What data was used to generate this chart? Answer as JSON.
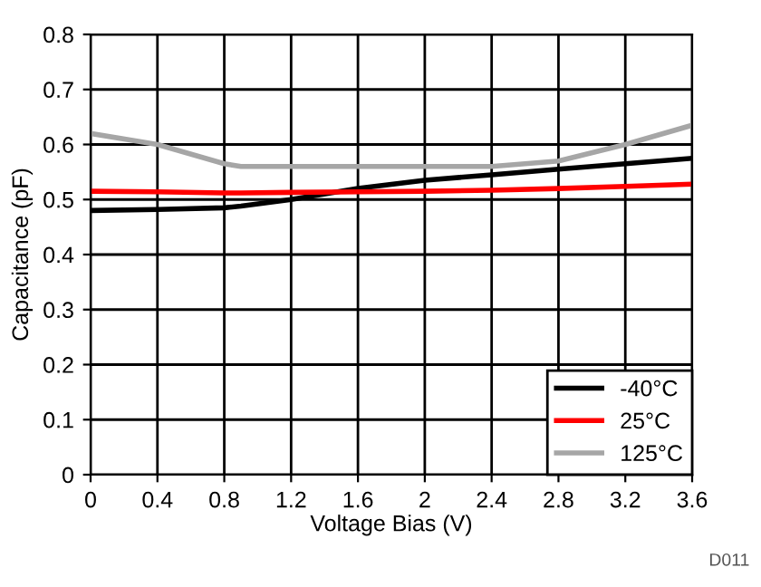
{
  "chart_data": {
    "type": "line",
    "xlabel": "Voltage Bias (V)",
    "ylabel": "Capacitance (pF)",
    "x": [
      0,
      0.4,
      0.8,
      0.9,
      1.2,
      1.6,
      2.0,
      2.4,
      2.8,
      3.2,
      3.6
    ],
    "series": [
      {
        "name": "-40°C",
        "color": "#000000",
        "values": [
          0.48,
          0.482,
          0.485,
          0.488,
          0.5,
          0.52,
          0.535,
          0.545,
          0.555,
          0.565,
          0.575
        ]
      },
      {
        "name": "25°C",
        "color": "#ff0000",
        "values": [
          0.515,
          0.514,
          0.512,
          0.512,
          0.513,
          0.514,
          0.515,
          0.517,
          0.52,
          0.524,
          0.528
        ]
      },
      {
        "name": "125°C",
        "color": "#a6a6a6",
        "values": [
          0.62,
          0.6,
          0.565,
          0.56,
          0.56,
          0.56,
          0.56,
          0.56,
          0.57,
          0.6,
          0.635
        ]
      }
    ],
    "xlim": [
      0,
      3.6
    ],
    "xticks": [
      0,
      0.4,
      0.8,
      1.2,
      1.6,
      2,
      2.4,
      2.8,
      3.2,
      3.6
    ],
    "ylim": [
      0,
      0.8
    ],
    "yticks": [
      0,
      0.1,
      0.2,
      0.3,
      0.4,
      0.5,
      0.6,
      0.7,
      0.8
    ],
    "grid": true,
    "legend": "bottom right",
    "marker": "none",
    "line_style": "solid",
    "annotations": [
      "D011"
    ]
  }
}
